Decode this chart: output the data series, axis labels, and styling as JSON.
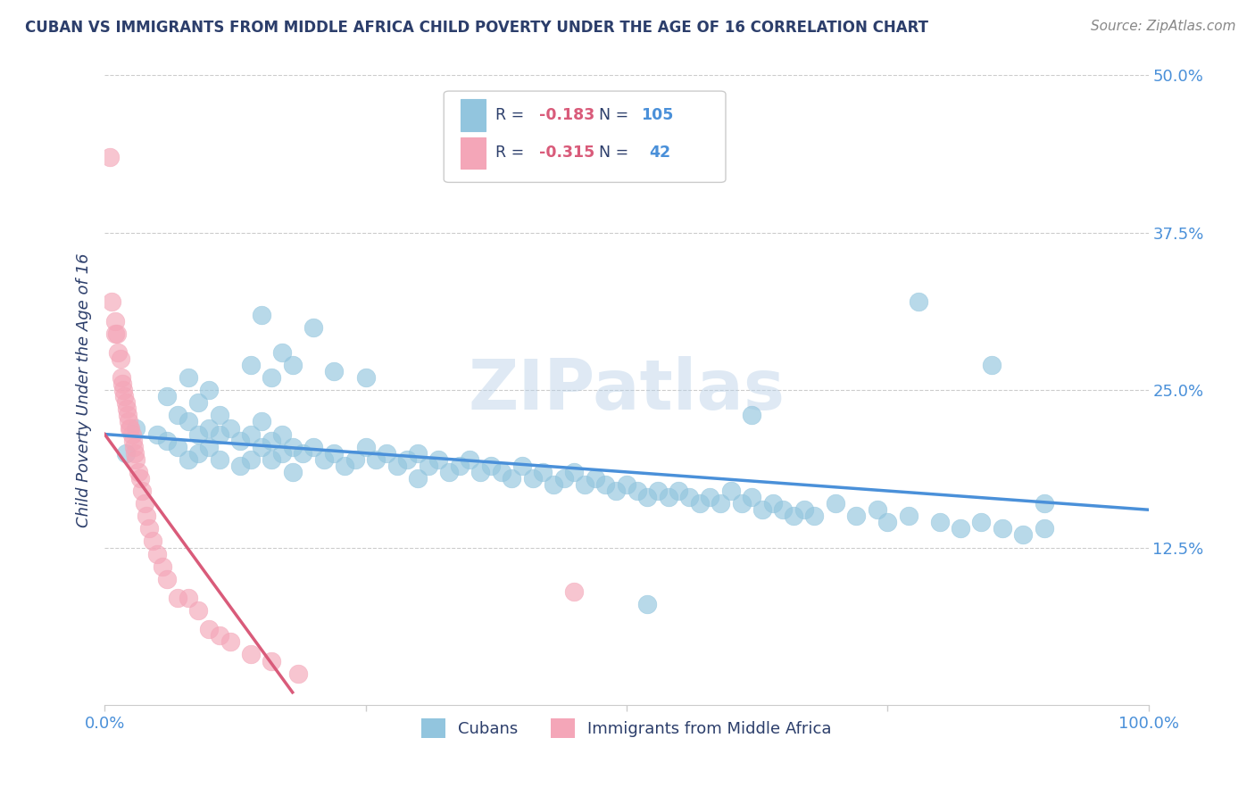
{
  "title": "CUBAN VS IMMIGRANTS FROM MIDDLE AFRICA CHILD POVERTY UNDER THE AGE OF 16 CORRELATION CHART",
  "source": "Source: ZipAtlas.com",
  "ylabel": "Child Poverty Under the Age of 16",
  "xlim": [
    0.0,
    1.0
  ],
  "ylim": [
    0.0,
    0.5
  ],
  "xtick_vals": [
    0.0,
    0.25,
    0.5,
    0.75,
    1.0
  ],
  "xtick_labels": [
    "0.0%",
    "",
    "",
    "",
    "100.0%"
  ],
  "ytick_vals": [
    0.5,
    0.375,
    0.25,
    0.125
  ],
  "ytick_labels": [
    "50.0%",
    "37.5%",
    "25.0%",
    "12.5%"
  ],
  "blue_color": "#92C5DE",
  "pink_color": "#F4A6B8",
  "blue_line_color": "#4A90D9",
  "pink_line_color": "#D95B7A",
  "title_color": "#2C3E6B",
  "axis_label_color": "#4A90D9",
  "source_color": "#888888",
  "watermark": "ZIPatlas",
  "background_color": "#FFFFFF",
  "grid_color": "#CCCCCC",
  "legend_box_color": "#CCCCCC",
  "blue_line_x": [
    0.0,
    1.0
  ],
  "blue_line_y": [
    0.215,
    0.155
  ],
  "pink_line_x": [
    0.0,
    0.18
  ],
  "pink_line_y": [
    0.215,
    0.01
  ],
  "blue_scatter_x": [
    0.02,
    0.03,
    0.05,
    0.06,
    0.07,
    0.07,
    0.08,
    0.08,
    0.09,
    0.09,
    0.1,
    0.1,
    0.11,
    0.11,
    0.11,
    0.12,
    0.13,
    0.13,
    0.14,
    0.14,
    0.15,
    0.15,
    0.16,
    0.16,
    0.17,
    0.17,
    0.18,
    0.18,
    0.19,
    0.2,
    0.21,
    0.22,
    0.23,
    0.24,
    0.25,
    0.26,
    0.27,
    0.28,
    0.29,
    0.3,
    0.3,
    0.31,
    0.32,
    0.33,
    0.34,
    0.35,
    0.36,
    0.37,
    0.38,
    0.39,
    0.4,
    0.41,
    0.42,
    0.43,
    0.44,
    0.45,
    0.46,
    0.47,
    0.48,
    0.49,
    0.5,
    0.51,
    0.52,
    0.53,
    0.54,
    0.55,
    0.56,
    0.57,
    0.58,
    0.59,
    0.6,
    0.61,
    0.62,
    0.63,
    0.64,
    0.65,
    0.66,
    0.67,
    0.68,
    0.7,
    0.72,
    0.74,
    0.75,
    0.77,
    0.8,
    0.82,
    0.84,
    0.86,
    0.88,
    0.9,
    0.06,
    0.08,
    0.09,
    0.1,
    0.14,
    0.16,
    0.18,
    0.22,
    0.25,
    0.15,
    0.17,
    0.2,
    0.52,
    0.62,
    0.78,
    0.85,
    0.9
  ],
  "blue_scatter_y": [
    0.2,
    0.22,
    0.215,
    0.21,
    0.23,
    0.205,
    0.225,
    0.195,
    0.215,
    0.2,
    0.22,
    0.205,
    0.23,
    0.215,
    0.195,
    0.22,
    0.21,
    0.19,
    0.215,
    0.195,
    0.225,
    0.205,
    0.21,
    0.195,
    0.215,
    0.2,
    0.205,
    0.185,
    0.2,
    0.205,
    0.195,
    0.2,
    0.19,
    0.195,
    0.205,
    0.195,
    0.2,
    0.19,
    0.195,
    0.2,
    0.18,
    0.19,
    0.195,
    0.185,
    0.19,
    0.195,
    0.185,
    0.19,
    0.185,
    0.18,
    0.19,
    0.18,
    0.185,
    0.175,
    0.18,
    0.185,
    0.175,
    0.18,
    0.175,
    0.17,
    0.175,
    0.17,
    0.165,
    0.17,
    0.165,
    0.17,
    0.165,
    0.16,
    0.165,
    0.16,
    0.17,
    0.16,
    0.165,
    0.155,
    0.16,
    0.155,
    0.15,
    0.155,
    0.15,
    0.16,
    0.15,
    0.155,
    0.145,
    0.15,
    0.145,
    0.14,
    0.145,
    0.14,
    0.135,
    0.14,
    0.245,
    0.26,
    0.24,
    0.25,
    0.27,
    0.26,
    0.27,
    0.265,
    0.26,
    0.31,
    0.28,
    0.3,
    0.08,
    0.23,
    0.32,
    0.27,
    0.16
  ],
  "pink_scatter_x": [
    0.005,
    0.007,
    0.01,
    0.01,
    0.012,
    0.013,
    0.015,
    0.016,
    0.017,
    0.018,
    0.019,
    0.02,
    0.021,
    0.022,
    0.023,
    0.024,
    0.025,
    0.026,
    0.027,
    0.028,
    0.029,
    0.03,
    0.032,
    0.034,
    0.036,
    0.038,
    0.04,
    0.043,
    0.046,
    0.05,
    0.055,
    0.06,
    0.07,
    0.08,
    0.09,
    0.1,
    0.11,
    0.12,
    0.14,
    0.16,
    0.185,
    0.45
  ],
  "pink_scatter_y": [
    0.435,
    0.32,
    0.305,
    0.295,
    0.295,
    0.28,
    0.275,
    0.26,
    0.255,
    0.25,
    0.245,
    0.24,
    0.235,
    0.23,
    0.225,
    0.22,
    0.22,
    0.215,
    0.21,
    0.205,
    0.2,
    0.195,
    0.185,
    0.18,
    0.17,
    0.16,
    0.15,
    0.14,
    0.13,
    0.12,
    0.11,
    0.1,
    0.085,
    0.085,
    0.075,
    0.06,
    0.055,
    0.05,
    0.04,
    0.035,
    0.025,
    0.09
  ]
}
